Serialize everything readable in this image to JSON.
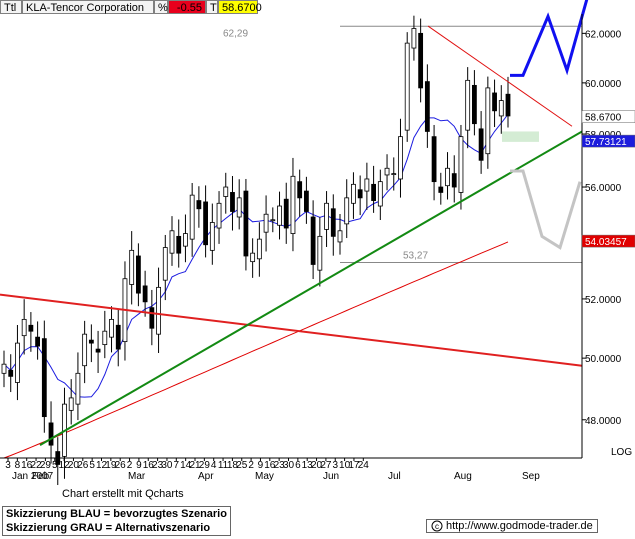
{
  "header": {
    "ticker_code": "Ttl",
    "name": "KLA-Tencor Corporation",
    "pct_label": "%",
    "change": "-0.55",
    "t_label": "T",
    "last_price": "58.6700"
  },
  "footer": {
    "credit": "Chart erstellt mit Qcharts",
    "scenario_blue": "Skizzierung BLAU = bevorzugtes Szenario",
    "scenario_gray": "Skizzierung GRAU = Alternativszenario",
    "url": "http://www.godmode-trader.de"
  },
  "chart_data": {
    "type": "candlestick",
    "title": "KLA-Tencor Corporation",
    "y_scale": "log",
    "y_scale_label": "LOG",
    "ylim": [
      46.8,
      62.8
    ],
    "y_ticks": [
      "62.0000",
      "60.0000",
      "58.0000",
      "56.0000",
      "54.0000",
      "52.0000",
      "50.0000",
      "48.0000"
    ],
    "y_tick_values": [
      62,
      60,
      58,
      56,
      54,
      52,
      50,
      48
    ],
    "x_tick_labels": [
      "3",
      "8",
      "16",
      "22",
      "29",
      "5",
      "12",
      "20",
      "26",
      "5",
      "12",
      "19",
      "26",
      "2",
      "9",
      "16",
      "23",
      "30",
      "7",
      "14",
      "21",
      "29",
      "4",
      "11",
      "18",
      "25",
      "2",
      "9",
      "16",
      "23",
      "30",
      "6",
      "13",
      "20",
      "27",
      "3",
      "10",
      "17",
      "24"
    ],
    "month_labels": [
      "Jan 2007",
      "Feb",
      "Mar",
      "Apr",
      "May",
      "Jun",
      "Jul",
      "Aug",
      "Sep"
    ],
    "price_labels": {
      "last": "58.6700",
      "ma_short": "57.73121",
      "ma_long": "54.03457"
    },
    "levels": [
      {
        "label": "62,29",
        "value": 62.29
      },
      {
        "label": "53,27",
        "value": 53.27
      }
    ],
    "colors": {
      "ma_short": "#1c1ce0",
      "ma_long": "#e00000",
      "support_trend": "#138a13",
      "resistance_trend": "#e01010",
      "down_trend": "#e02020",
      "scenario_blue": "#1010f0",
      "scenario_gray": "#c4c4c4",
      "target_zone": "#d4ecd4",
      "last_box": "#ffffff",
      "ma_short_box": "#1c1cdc",
      "ma_long_box": "#e00000"
    },
    "series": [
      {
        "name": "KLA-Tencor Corporation",
        "description": "daily OHLC",
        "close": [
          49.8,
          49.4,
          50.5,
          51.3,
          50.9,
          50.4,
          48.1,
          47.2,
          46.6,
          48.5,
          48.7,
          49.5,
          50.8,
          50.5,
          50.2,
          50.9,
          51.3,
          50.3,
          52.7,
          53.7,
          52.2,
          51.9,
          51.0,
          52.4,
          53.8,
          54.4,
          53.6,
          54.3,
          55.7,
          55.2,
          53.9,
          54.7,
          55.4,
          56.0,
          55.1,
          55.6,
          53.5,
          53.6,
          54.1,
          55.0,
          54.8,
          55.3,
          54.5,
          56.4,
          55.6,
          55.1,
          53.2,
          54.2,
          55.4,
          54.2,
          54.4,
          55.6,
          56.1,
          55.6,
          56.3,
          55.5,
          56.2,
          56.7,
          56.5,
          57.9,
          61.6,
          62.2,
          59.8,
          58.1,
          56.2,
          55.8,
          56.7,
          56.0,
          57.9,
          60.1,
          58.4,
          57.0,
          59.8,
          58.9,
          59.3,
          58.7
        ]
      }
    ]
  }
}
